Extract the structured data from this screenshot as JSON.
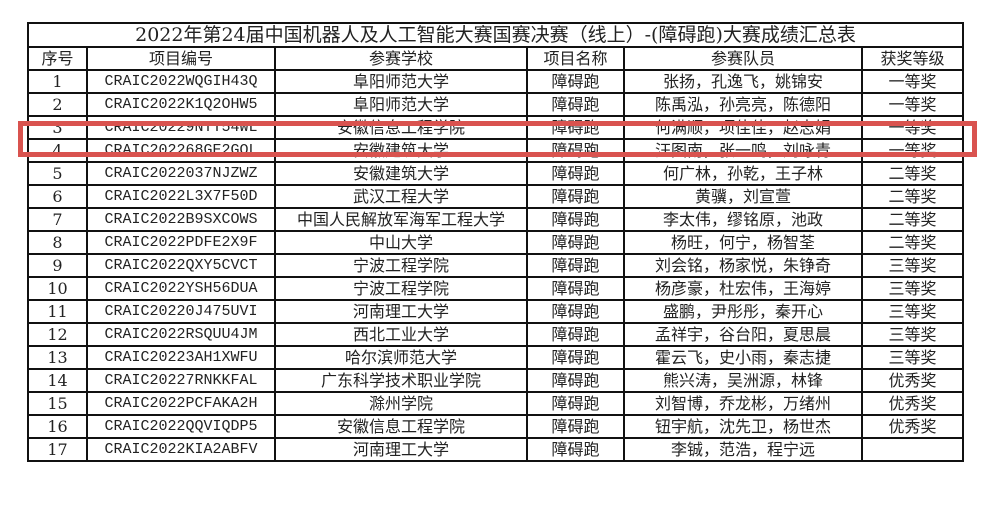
{
  "title": "2022年第24届中国机器人及人工智能大赛国赛决赛（线上）-(障碍跑)大赛成绩汇总表",
  "headers": [
    "序号",
    "项目编号",
    "参赛学校",
    "项目名称",
    "参赛队员",
    "获奖等级"
  ],
  "highlight_color": "#d9534f",
  "highlighted_row": 3,
  "rows": [
    [
      "1",
      "CRAIC2022WQGIH43Q",
      "阜阳师范大学",
      "障碍跑",
      "张扬，孔逸飞，姚锦安",
      "一等奖"
    ],
    [
      "2",
      "CRAIC2022K1Q2OHW5",
      "阜阳师范大学",
      "障碍跑",
      "陈禹泓，孙亮亮，陈德阳",
      "一等奖"
    ],
    [
      "3",
      "CRAIC20229NTT54WL",
      "安徽信息工程学院",
      "障碍跑",
      "何满顺，项佳佳，赵志娟",
      "一等奖"
    ],
    [
      "4",
      "CRAIC202268GE2GOL",
      "安徽建筑大学",
      "障碍跑",
      "汪图南，张一鸣，刘咏青",
      "一等奖"
    ],
    [
      "5",
      "CRAIC2022037NJZWZ",
      "安徽建筑大学",
      "障碍跑",
      "何广林，孙乾，王子林",
      "二等奖"
    ],
    [
      "6",
      "CRAIC2022L3X7F50D",
      "武汉工程大学",
      "障碍跑",
      "黄骥，刘宣萱",
      "二等奖"
    ],
    [
      "7",
      "CRAIC2022B9SXCOWS",
      "中国人民解放军海军工程大学",
      "障碍跑",
      "李太伟，缪铭原，池政",
      "二等奖"
    ],
    [
      "8",
      "CRAIC2022PDFE2X9F",
      "中山大学",
      "障碍跑",
      "杨旺，何宁，杨智荃",
      "二等奖"
    ],
    [
      "9",
      "CRAIC2022QXY5CVCT",
      "宁波工程学院",
      "障碍跑",
      "刘会铭，杨家悦，朱铮奇",
      "三等奖"
    ],
    [
      "10",
      "CRAIC2022YSH56DUA",
      "宁波工程学院",
      "障碍跑",
      "杨彦豪，杜宏伟，王海婷",
      "三等奖"
    ],
    [
      "11",
      "CRAIC20220J475UVI",
      "河南理工大学",
      "障碍跑",
      "盛鹏，尹彤彤，秦开心",
      "三等奖"
    ],
    [
      "12",
      "CRAIC2022RSQUU4JM",
      "西北工业大学",
      "障碍跑",
      "孟祥宇，谷台阳，夏思晨",
      "三等奖"
    ],
    [
      "13",
      "CRAIC20223AH1XWFU",
      "哈尔滨师范大学",
      "障碍跑",
      "霍云飞，史小雨，秦志捷",
      "三等奖"
    ],
    [
      "14",
      "CRAIC20227RNKKFAL",
      "广东科学技术职业学院",
      "障碍跑",
      "熊兴涛，吴洲源，林锋",
      "优秀奖"
    ],
    [
      "15",
      "CRAIC2022PCFAKA2H",
      "滁州学院",
      "障碍跑",
      "刘智博，乔龙彬，万绪州",
      "优秀奖"
    ],
    [
      "16",
      "CRAIC2022QQVIQDP5",
      "安徽信息工程学院",
      "障碍跑",
      "钮宇航，沈先卫，杨世杰",
      "优秀奖"
    ],
    [
      "17",
      "CRAIC2022KIA2ABFV",
      "河南理工大学",
      "障碍跑",
      "李铖，范浩，程宁远",
      ""
    ]
  ]
}
